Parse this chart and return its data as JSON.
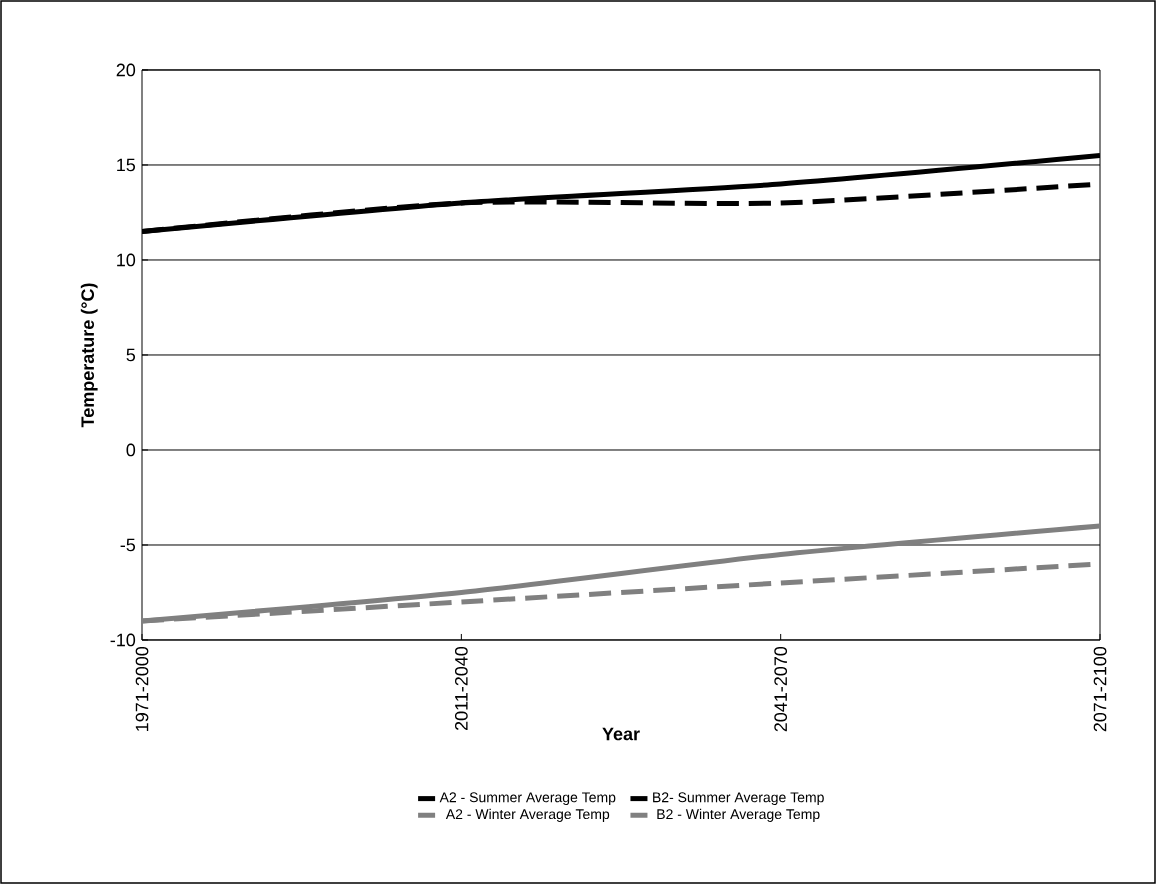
{
  "chart_data": {
    "type": "line",
    "xlabel": "Year",
    "ylabel": "Temperature (°C)",
    "categories": [
      "1971-2000",
      "2011-2040",
      "2041-2070",
      "2071-2100"
    ],
    "series": [
      {
        "name": "A2 - Summer Average Temp",
        "color": "#000000",
        "line_style": "solid",
        "values": [
          11.5,
          13,
          14,
          15.5
        ]
      },
      {
        "name": "B2- Summer Average Temp",
        "color": "#000000",
        "line_style": "dashed",
        "values": [
          11.5,
          13,
          13,
          14
        ]
      },
      {
        "name": "A2 - Winter Average Temp",
        "color": "#808080",
        "line_style": "solid",
        "values": [
          -9,
          -7.5,
          -5.5,
          -4
        ]
      },
      {
        "name": "B2 - Winter Average Temp",
        "color": "#808080",
        "line_style": "dashed",
        "values": [
          -9,
          -8,
          -7,
          -6
        ]
      }
    ],
    "ylim": [
      -10,
      20
    ],
    "yticks": [
      -10,
      -5,
      0,
      5,
      10,
      15,
      20
    ],
    "grid": "y",
    "legend": "bottom",
    "marker": "none"
  }
}
